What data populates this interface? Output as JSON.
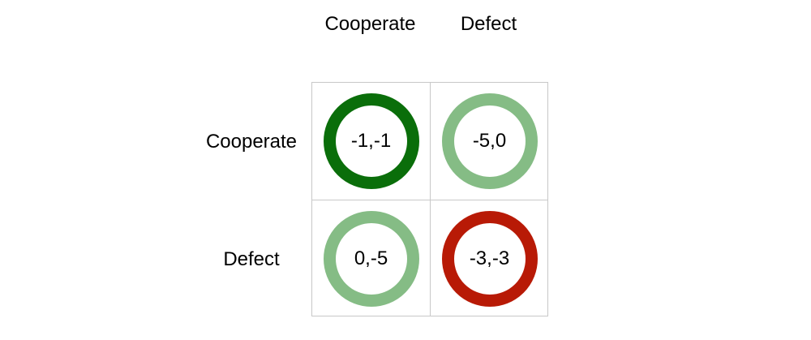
{
  "columns": [
    "Cooperate",
    "Defect"
  ],
  "rows": [
    "Cooperate",
    "Defect"
  ],
  "cells": [
    [
      {
        "payoff": "-1,-1",
        "ring_color": "#0a6e0a"
      },
      {
        "payoff": "-5,0",
        "ring_color": "#85bc85"
      }
    ],
    [
      {
        "payoff": "0,-5",
        "ring_color": "#85bc85"
      },
      {
        "payoff": "-3,-3",
        "ring_color": "#b81a06"
      }
    ]
  ]
}
